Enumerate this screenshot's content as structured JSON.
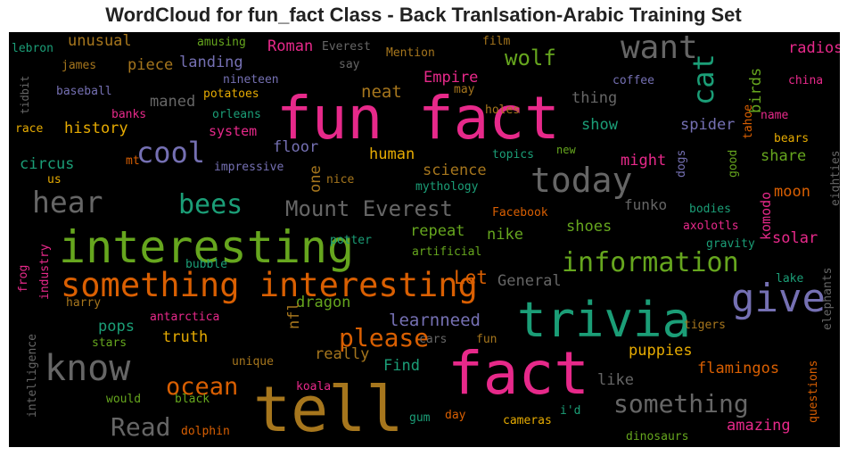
{
  "title": "WordCloud for fun_fact Class - Back Tranlsation-Arabic Training Set",
  "words": [
    {
      "text": "fun fact",
      "color": "#e7298a"
    },
    {
      "text": "tell",
      "color": "#a6761d"
    },
    {
      "text": "fact",
      "color": "#e7298a"
    },
    {
      "text": "trivia",
      "color": "#1b9e77"
    },
    {
      "text": "interesting",
      "color": "#66a61e"
    },
    {
      "text": "something interesting",
      "color": "#d95f02"
    },
    {
      "text": "give",
      "color": "#7570b3"
    },
    {
      "text": "know",
      "color": "#666666"
    },
    {
      "text": "today",
      "color": "#666666"
    },
    {
      "text": "want",
      "color": "#666666"
    },
    {
      "text": "cat",
      "color": "#1b9e77"
    },
    {
      "text": "information",
      "color": "#66a61e"
    },
    {
      "text": "hear",
      "color": "#666666"
    },
    {
      "text": "cool",
      "color": "#7570b3"
    },
    {
      "text": "bees",
      "color": "#1b9e77"
    },
    {
      "text": "Mount Everest",
      "color": "#666666"
    },
    {
      "text": "please",
      "color": "#d95f02"
    },
    {
      "text": "ocean",
      "color": "#d95f02"
    },
    {
      "text": "something",
      "color": "#666666"
    },
    {
      "text": "Read",
      "color": "#666666"
    },
    {
      "text": "wolf",
      "color": "#66a61e"
    },
    {
      "text": "learnneed",
      "color": "#7570b3"
    },
    {
      "text": "Let",
      "color": "#d95f02"
    },
    {
      "text": "neat",
      "color": "#a6761d"
    },
    {
      "text": "history",
      "color": "#e6ab02"
    },
    {
      "text": "circus",
      "color": "#1b9e77"
    },
    {
      "text": "unusual",
      "color": "#a6761d"
    },
    {
      "text": "piece",
      "color": "#a6761d"
    },
    {
      "text": "landing",
      "color": "#7570b3"
    },
    {
      "text": "Roman",
      "color": "#e7298a"
    },
    {
      "text": "Everest",
      "color": "#666666"
    },
    {
      "text": "Mention",
      "color": "#a6761d"
    },
    {
      "text": "radios",
      "color": "#e7298a"
    },
    {
      "text": "birds",
      "color": "#66a61e"
    },
    {
      "text": "thing",
      "color": "#666666"
    },
    {
      "text": "spider",
      "color": "#7570b3"
    },
    {
      "text": "show",
      "color": "#1b9e77"
    },
    {
      "text": "Empire",
      "color": "#e7298a"
    },
    {
      "text": "maned",
      "color": "#666666"
    },
    {
      "text": "system",
      "color": "#e7298a"
    },
    {
      "text": "floor",
      "color": "#7570b3"
    },
    {
      "text": "human",
      "color": "#e6ab02"
    },
    {
      "text": "science",
      "color": "#a6761d"
    },
    {
      "text": "might",
      "color": "#e7298a"
    },
    {
      "text": "share",
      "color": "#66a61e"
    },
    {
      "text": "moon",
      "color": "#d95f02"
    },
    {
      "text": "komodo",
      "color": "#e7298a"
    },
    {
      "text": "funko",
      "color": "#666666"
    },
    {
      "text": "shoes",
      "color": "#66a61e"
    },
    {
      "text": "nike",
      "color": "#66a61e"
    },
    {
      "text": "repeat",
      "color": "#66a61e"
    },
    {
      "text": "General",
      "color": "#666666"
    },
    {
      "text": "dragon",
      "color": "#66a61e"
    },
    {
      "text": "truth",
      "color": "#e6ab02"
    },
    {
      "text": "pops",
      "color": "#1b9e77"
    },
    {
      "text": "really",
      "color": "#a6761d"
    },
    {
      "text": "Find",
      "color": "#1b9e77"
    },
    {
      "text": "puppies",
      "color": "#e6ab02"
    },
    {
      "text": "flamingos",
      "color": "#d95f02"
    },
    {
      "text": "like",
      "color": "#666666"
    },
    {
      "text": "amazing",
      "color": "#e7298a"
    },
    {
      "text": "solar",
      "color": "#e7298a"
    },
    {
      "text": "nfl",
      "color": "#a6761d"
    },
    {
      "text": "one",
      "color": "#a6761d"
    },
    {
      "text": "lebron",
      "color": "#1b9e77"
    },
    {
      "text": "amusing",
      "color": "#66a61e"
    },
    {
      "text": "say",
      "color": "#666666"
    },
    {
      "text": "film",
      "color": "#a6761d"
    },
    {
      "text": "james",
      "color": "#a6761d"
    },
    {
      "text": "nineteen",
      "color": "#7570b3"
    },
    {
      "text": "coffee",
      "color": "#7570b3"
    },
    {
      "text": "china",
      "color": "#e7298a"
    },
    {
      "text": "tidbit",
      "color": "#666666"
    },
    {
      "text": "baseball",
      "color": "#7570b3"
    },
    {
      "text": "potatoes",
      "color": "#e6ab02"
    },
    {
      "text": "may",
      "color": "#a6761d"
    },
    {
      "text": "holes",
      "color": "#a6761d"
    },
    {
      "text": "banks",
      "color": "#e7298a"
    },
    {
      "text": "orleans",
      "color": "#1b9e77"
    },
    {
      "text": "name",
      "color": "#e7298a"
    },
    {
      "text": "tahoe",
      "color": "#d95f02"
    },
    {
      "text": "race",
      "color": "#e6ab02"
    },
    {
      "text": "bears",
      "color": "#e6ab02"
    },
    {
      "text": "new",
      "color": "#66a61e"
    },
    {
      "text": "topics",
      "color": "#1b9e77"
    },
    {
      "text": "good",
      "color": "#66a61e"
    },
    {
      "text": "eighties",
      "color": "#666666"
    },
    {
      "text": "mt",
      "color": "#d95f02"
    },
    {
      "text": "impressive",
      "color": "#7570b3"
    },
    {
      "text": "dogs",
      "color": "#7570b3"
    },
    {
      "text": "us",
      "color": "#e6ab02"
    },
    {
      "text": "nice",
      "color": "#a6761d"
    },
    {
      "text": "mythology",
      "color": "#1b9e77"
    },
    {
      "text": "Facebook",
      "color": "#d95f02"
    },
    {
      "text": "bodies",
      "color": "#1b9e77"
    },
    {
      "text": "axolotls",
      "color": "#e7298a"
    },
    {
      "text": "potter",
      "color": "#1b9e77"
    },
    {
      "text": "gravity",
      "color": "#1b9e77"
    },
    {
      "text": "bubble",
      "color": "#1b9e77"
    },
    {
      "text": "artificial",
      "color": "#66a61e"
    },
    {
      "text": "frog",
      "color": "#e7298a"
    },
    {
      "text": "industry",
      "color": "#e7298a"
    },
    {
      "text": "lake",
      "color": "#1b9e77"
    },
    {
      "text": "harry",
      "color": "#a6761d"
    },
    {
      "text": "antarctica",
      "color": "#e7298a"
    },
    {
      "text": "cars",
      "color": "#666666"
    },
    {
      "text": "fun",
      "color": "#a6761d"
    },
    {
      "text": "tigers",
      "color": "#a6761d"
    },
    {
      "text": "elephants",
      "color": "#666666"
    },
    {
      "text": "stars",
      "color": "#66a61e"
    },
    {
      "text": "intelligence",
      "color": "#666666"
    },
    {
      "text": "unique",
      "color": "#a6761d"
    },
    {
      "text": "koala",
      "color": "#e7298a"
    },
    {
      "text": "would",
      "color": "#66a61e"
    },
    {
      "text": "black",
      "color": "#66a61e"
    },
    {
      "text": "questions",
      "color": "#d95f02"
    },
    {
      "text": "gum",
      "color": "#1b9e77"
    },
    {
      "text": "day",
      "color": "#d95f02"
    },
    {
      "text": "cameras",
      "color": "#e6ab02"
    },
    {
      "text": "i'd",
      "color": "#1b9e77"
    },
    {
      "text": "dolphin",
      "color": "#d95f02"
    },
    {
      "text": "dinosaurs",
      "color": "#66a61e"
    }
  ]
}
